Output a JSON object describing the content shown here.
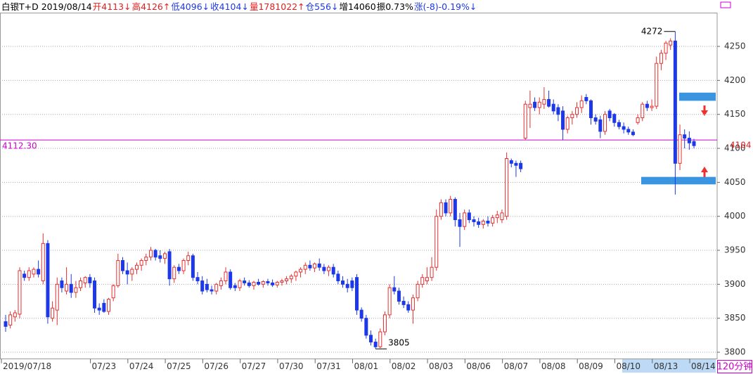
{
  "chart_data": {
    "type": "candlestick",
    "title": "白银T+D 2019/08/14",
    "quote": [
      {
        "text": "开4113↓",
        "color": "#e02020"
      },
      {
        "text": "高4126↑",
        "color": "#e02020"
      },
      {
        "text": "低4096↓",
        "color": "#1c38e8"
      },
      {
        "text": "收4104↓",
        "color": "#1c38e8"
      },
      {
        "text": "量1781022↑",
        "color": "#e02020"
      },
      {
        "text": "仓556↓",
        "color": "#1c38e8"
      },
      {
        "text": "增14060",
        "color": "#000000"
      },
      {
        "text": "振0.73%",
        "color": "#000000"
      },
      {
        "text": "涨(-8)-0.19%↓",
        "color": "#1c38e8"
      }
    ],
    "period": "120分钟",
    "up_color": "#e53030",
    "down_color": "#1c38e8",
    "grid": true,
    "ylim": [
      3790,
      4300
    ],
    "yticks": [
      3800,
      3850,
      3900,
      3950,
      4000,
      4050,
      4100,
      4150,
      4200,
      4250
    ],
    "categories": [
      "2019/07/18",
      null,
      null,
      null,
      null,
      null,
      null,
      null,
      null,
      null,
      null,
      null,
      null,
      null,
      null,
      null,
      null,
      null,
      null,
      "07/23",
      null,
      null,
      null,
      null,
      null,
      null,
      null,
      "07/24",
      null,
      null,
      null,
      null,
      null,
      null,
      null,
      "07/25",
      null,
      null,
      null,
      null,
      null,
      null,
      null,
      "07/26",
      null,
      null,
      null,
      null,
      null,
      null,
      null,
      "07/27",
      null,
      null,
      null,
      null,
      null,
      null,
      null,
      "07/30",
      null,
      null,
      null,
      null,
      null,
      null,
      null,
      "07/31",
      null,
      null,
      null,
      null,
      null,
      null,
      null,
      "08/01",
      null,
      null,
      null,
      null,
      null,
      null,
      null,
      "08/02",
      null,
      null,
      null,
      null,
      null,
      null,
      null,
      "08/03",
      null,
      null,
      null,
      null,
      null,
      null,
      null,
      "08/06",
      null,
      null,
      null,
      null,
      null,
      null,
      null,
      "08/07",
      null,
      null,
      null,
      null,
      null,
      null,
      null,
      "08/08",
      null,
      null,
      null,
      null,
      null,
      null,
      null,
      "08/09",
      null,
      null,
      null,
      null,
      null,
      null,
      null,
      "08/10",
      null,
      null,
      null,
      null,
      null,
      null,
      null,
      "08/13",
      null,
      null,
      null,
      null,
      null,
      null,
      null,
      "08/14"
    ],
    "candles": [
      [
        3845,
        3855,
        3830,
        3838
      ],
      [
        3840,
        3860,
        3835,
        3855
      ],
      [
        3852,
        3862,
        3845,
        3858
      ],
      [
        3856,
        3925,
        3850,
        3920
      ],
      [
        3915,
        3920,
        3905,
        3910
      ],
      [
        3910,
        3925,
        3905,
        3920
      ],
      [
        3915,
        3925,
        3910,
        3922
      ],
      [
        3922,
        3935,
        3910,
        3915
      ],
      [
        3905,
        3975,
        3900,
        3960
      ],
      [
        3960,
        3965,
        3842,
        3852
      ],
      [
        3850,
        3875,
        3845,
        3865
      ],
      [
        3862,
        3910,
        3840,
        3900
      ],
      [
        3905,
        3910,
        3888,
        3895
      ],
      [
        3890,
        3925,
        3885,
        3900
      ],
      [
        3900,
        3915,
        3880,
        3888
      ],
      [
        3888,
        3905,
        3880,
        3895
      ],
      [
        3895,
        3910,
        3890,
        3905
      ],
      [
        3902,
        3912,
        3895,
        3910
      ],
      [
        3910,
        3915,
        3895,
        3902
      ],
      [
        3905,
        3910,
        3858,
        3865
      ],
      [
        3865,
        3872,
        3855,
        3862
      ],
      [
        3872,
        3878,
        3858,
        3860
      ],
      [
        3860,
        3880,
        3855,
        3878
      ],
      [
        3880,
        3900,
        3875,
        3898
      ],
      [
        3898,
        3945,
        3895,
        3935
      ],
      [
        3935,
        3940,
        3915,
        3920
      ],
      [
        3920,
        3932,
        3900,
        3915
      ],
      [
        3915,
        3925,
        3905,
        3922
      ],
      [
        3922,
        3932,
        3915,
        3928
      ],
      [
        3928,
        3938,
        3920,
        3935
      ],
      [
        3935,
        3945,
        3928,
        3940
      ],
      [
        3940,
        3955,
        3935,
        3950
      ],
      [
        3950,
        3952,
        3935,
        3940
      ],
      [
        3942,
        3950,
        3932,
        3938
      ],
      [
        3938,
        3948,
        3930,
        3945
      ],
      [
        3948,
        3952,
        3898,
        3908
      ],
      [
        3908,
        3928,
        3902,
        3925
      ],
      [
        3925,
        3930,
        3915,
        3920
      ],
      [
        3920,
        3938,
        3915,
        3935
      ],
      [
        3935,
        3948,
        3928,
        3942
      ],
      [
        3942,
        3945,
        3905,
        3910
      ],
      [
        3910,
        3918,
        3900,
        3905
      ],
      [
        3905,
        3912,
        3885,
        3890
      ],
      [
        3900,
        3908,
        3888,
        3892
      ],
      [
        3892,
        3898,
        3885,
        3890
      ],
      [
        3890,
        3902,
        3885,
        3900
      ],
      [
        3898,
        3910,
        3892,
        3905
      ],
      [
        3905,
        3925,
        3900,
        3918
      ],
      [
        3918,
        3922,
        3892,
        3895
      ],
      [
        3898,
        3902,
        3890,
        3895
      ],
      [
        3895,
        3908,
        3890,
        3905
      ],
      [
        3905,
        3910,
        3898,
        3902
      ],
      [
        3902,
        3906,
        3895,
        3898
      ],
      [
        3898,
        3905,
        3892,
        3903
      ],
      [
        3903,
        3908,
        3898,
        3900
      ],
      [
        3900,
        3906,
        3895,
        3904
      ],
      [
        3904,
        3908,
        3898,
        3902
      ],
      [
        3902,
        3907,
        3896,
        3899
      ],
      [
        3899,
        3905,
        3895,
        3903
      ],
      [
        3903,
        3908,
        3898,
        3905
      ],
      [
        3905,
        3912,
        3900,
        3908
      ],
      [
        3908,
        3915,
        3902,
        3912
      ],
      [
        3912,
        3920,
        3905,
        3918
      ],
      [
        3918,
        3925,
        3910,
        3922
      ],
      [
        3922,
        3932,
        3915,
        3928
      ],
      [
        3928,
        3935,
        3920,
        3924
      ],
      [
        3924,
        3932,
        3918,
        3930
      ],
      [
        3930,
        3938,
        3920,
        3925
      ],
      [
        3925,
        3930,
        3915,
        3920
      ],
      [
        3920,
        3928,
        3912,
        3925
      ],
      [
        3925,
        3930,
        3910,
        3915
      ],
      [
        3915,
        3920,
        3900,
        3905
      ],
      [
        3905,
        3912,
        3895,
        3900
      ],
      [
        3900,
        3908,
        3888,
        3895
      ],
      [
        3905,
        3910,
        3890,
        3895
      ],
      [
        3910,
        3915,
        3855,
        3862
      ],
      [
        3862,
        3866,
        3845,
        3850
      ],
      [
        3850,
        3855,
        3820,
        3825
      ],
      [
        3825,
        3832,
        3810,
        3815
      ],
      [
        3815,
        3820,
        3805,
        3808
      ],
      [
        3808,
        3835,
        3806,
        3830
      ],
      [
        3830,
        3860,
        3825,
        3855
      ],
      [
        3855,
        3900,
        3850,
        3895
      ],
      [
        3895,
        3912,
        3885,
        3890
      ],
      [
        3890,
        3895,
        3870,
        3875
      ],
      [
        3875,
        3882,
        3865,
        3870
      ],
      [
        3870,
        3875,
        3858,
        3862
      ],
      [
        3862,
        3885,
        3842,
        3880
      ],
      [
        3880,
        3905,
        3875,
        3900
      ],
      [
        3900,
        3915,
        3895,
        3910
      ],
      [
        3905,
        3925,
        3900,
        3910
      ],
      [
        3910,
        3940,
        3905,
        3925
      ],
      [
        3925,
        4010,
        3920,
        4000
      ],
      [
        4000,
        4025,
        3995,
        4020
      ],
      [
        4020,
        4025,
        4000,
        4005
      ],
      [
        4005,
        4030,
        4000,
        4025
      ],
      [
        4025,
        4028,
        3985,
        3995
      ],
      [
        3995,
        4005,
        3955,
        3985
      ],
      [
        3985,
        4010,
        3980,
        4005
      ],
      [
        4005,
        4010,
        3990,
        3995
      ],
      [
        3995,
        4000,
        3985,
        3992
      ],
      [
        3992,
        3998,
        3983,
        3988
      ],
      [
        3988,
        3996,
        3982,
        3993
      ],
      [
        3993,
        4000,
        3985,
        3990
      ],
      [
        3990,
        4002,
        3985,
        3998
      ],
      [
        3998,
        4008,
        3990,
        4002
      ],
      [
        3995,
        4010,
        3990,
        4005
      ],
      [
        4000,
        4094,
        3995,
        4085
      ],
      [
        4082,
        4085,
        4072,
        4078
      ],
      [
        4078,
        4082,
        4058,
        4075
      ],
      [
        4078,
        4082,
        4065,
        4070
      ],
      [
        4115,
        4170,
        4112,
        4165
      ],
      [
        4160,
        4185,
        4130,
        4165
      ],
      [
        4168,
        4175,
        4155,
        4160
      ],
      [
        4160,
        4175,
        4150,
        4168
      ],
      [
        4165,
        4190,
        4158,
        4172
      ],
      [
        4172,
        4185,
        4160,
        4162
      ],
      [
        4165,
        4172,
        4150,
        4155
      ],
      [
        4160,
        4165,
        4140,
        4150
      ],
      [
        4155,
        4162,
        4112,
        4128
      ],
      [
        4128,
        4148,
        4122,
        4145
      ],
      [
        4145,
        4155,
        4135,
        4150
      ],
      [
        4150,
        4168,
        4145,
        4160
      ],
      [
        4160,
        4178,
        4152,
        4170
      ],
      [
        4175,
        4180,
        4165,
        4170
      ],
      [
        4170,
        4172,
        4135,
        4145
      ],
      [
        4145,
        4150,
        4135,
        4140
      ],
      [
        4142,
        4148,
        4115,
        4125
      ],
      [
        4125,
        4155,
        4120,
        4150
      ],
      [
        4155,
        4158,
        4140,
        4145
      ],
      [
        4150,
        4152,
        4132,
        4138
      ],
      [
        4138,
        4142,
        4128,
        4132
      ],
      [
        4132,
        4138,
        4122,
        4128
      ],
      [
        4128,
        4132,
        4120,
        4124
      ],
      [
        4124,
        4128,
        4118,
        4120
      ],
      [
        4138,
        4150,
        4135,
        4145
      ],
      [
        4145,
        4168,
        4140,
        4165
      ],
      [
        4165,
        4170,
        4155,
        4160
      ],
      [
        4160,
        4172,
        4155,
        4162
      ],
      [
        4162,
        4235,
        4158,
        4225
      ],
      [
        4225,
        4245,
        4215,
        4240
      ],
      [
        4240,
        4258,
        4230,
        4255
      ],
      [
        4252,
        4262,
        4245,
        4258
      ],
      [
        4258,
        4272,
        4032,
        4078
      ],
      [
        4078,
        4135,
        4068,
        4120
      ],
      [
        4120,
        4128,
        4100,
        4115
      ],
      [
        4115,
        4125,
        4098,
        4108
      ],
      [
        4110,
        4114,
        4100,
        4104
      ]
    ],
    "extremes": {
      "high": "4272",
      "low": "3805"
    },
    "last_label": "4104",
    "ref_line": {
      "value": 4112.3,
      "label": "4112.30",
      "color": "#cc00cc"
    },
    "zones": [
      {
        "low": 4170,
        "high": 4182
      },
      {
        "low": 4047,
        "high": 4058
      }
    ],
    "zone_color": "#3a94e0"
  }
}
